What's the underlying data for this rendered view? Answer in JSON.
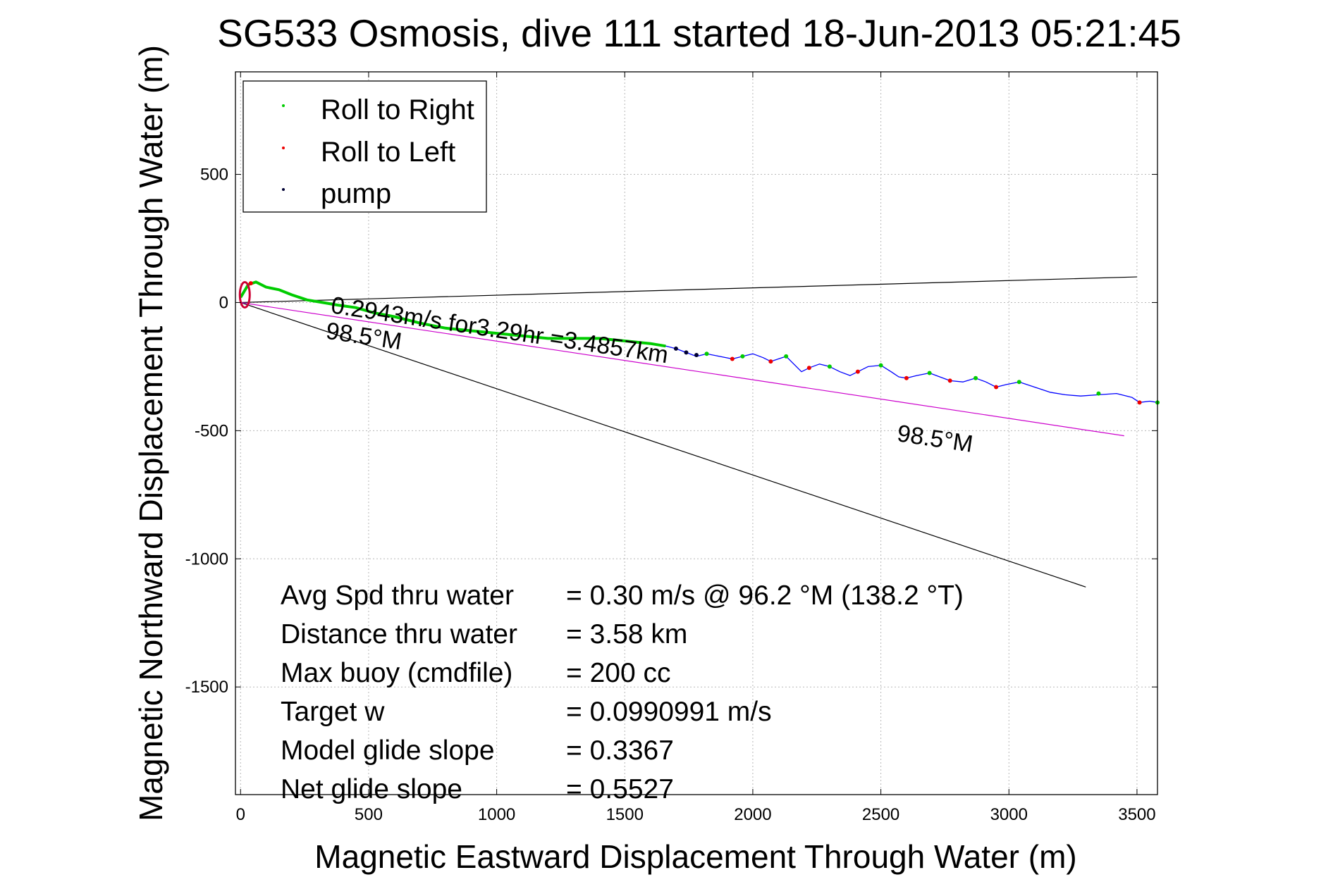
{
  "chart_data": {
    "type": "line",
    "title": "SG533 Osmosis, dive 111 started 18-Jun-2013 05:21:45",
    "xlabel": "Magnetic Eastward Displacement Through Water (m)",
    "ylabel": "Magnetic Northward Displacement Through Water (m)",
    "xlim": [
      -20,
      3580
    ],
    "ylim": [
      -1920,
      900
    ],
    "xticks": [
      0,
      500,
      1000,
      1500,
      2000,
      2500,
      3000,
      3500
    ],
    "yticks": [
      -1500,
      -1000,
      -500,
      0,
      500
    ],
    "grid": true,
    "legend": {
      "placement": "top-left",
      "entries": [
        {
          "label": "Roll to Right",
          "color": "#00cc00"
        },
        {
          "label": "Roll to Left",
          "color": "#ee0000"
        },
        {
          "label": "pump",
          "color": "#000033"
        }
      ]
    },
    "series": [
      {
        "color": "#0000ff",
        "x": [
          0,
          30,
          60,
          100,
          150,
          200,
          260,
          320,
          380,
          450,
          520,
          600,
          700,
          800,
          900,
          1000,
          1100,
          1200,
          1300,
          1400,
          1500,
          1600,
          1660,
          1700,
          1740,
          1780,
          1820,
          1870,
          1920,
          1960,
          2000,
          2040,
          2070,
          2100,
          2130,
          2160,
          2190,
          2220,
          2260,
          2300,
          2340,
          2380,
          2410,
          2450,
          2500,
          2540,
          2570,
          2600,
          2640,
          2690,
          2730,
          2770,
          2820,
          2870,
          2910,
          2950,
          2990,
          3040,
          3100,
          3160,
          3220,
          3280,
          3350,
          3420,
          3480,
          3510,
          3550,
          3580
        ],
        "y": [
          20,
          70,
          80,
          60,
          50,
          30,
          10,
          0,
          -10,
          -20,
          -40,
          -55,
          -80,
          -100,
          -110,
          -120,
          -130,
          -140,
          -140,
          -140,
          -150,
          -160,
          -170,
          -180,
          -195,
          -210,
          -200,
          -210,
          -220,
          -210,
          -200,
          -215,
          -230,
          -220,
          -210,
          -240,
          -270,
          -255,
          -240,
          -250,
          -270,
          -285,
          -270,
          -250,
          -245,
          -270,
          -290,
          -295,
          -285,
          -275,
          -290,
          -305,
          -310,
          -295,
          -310,
          -330,
          -320,
          -310,
          -330,
          -350,
          -360,
          -365,
          -360,
          -355,
          -370,
          -390,
          -385,
          -390
        ]
      },
      {
        "color": "#00cc00",
        "x": [
          0,
          30,
          60,
          100,
          150,
          200,
          260,
          320,
          380,
          450,
          520,
          600,
          700,
          800,
          900,
          1000,
          1100,
          1200,
          1300,
          1400,
          1500,
          1600,
          1660
        ],
        "y": [
          20,
          70,
          80,
          60,
          50,
          30,
          10,
          0,
          -10,
          -20,
          -40,
          -55,
          -80,
          -100,
          -110,
          -120,
          -130,
          -140,
          -140,
          -140,
          -150,
          -160,
          -170
        ]
      }
    ],
    "point_markers": {
      "roll_right": {
        "color": "#00cc00",
        "points": [
          [
            1820,
            -200
          ],
          [
            1960,
            -210
          ],
          [
            2130,
            -210
          ],
          [
            2300,
            -250
          ],
          [
            2500,
            -245
          ],
          [
            2690,
            -275
          ],
          [
            2870,
            -295
          ],
          [
            3040,
            -310
          ],
          [
            3350,
            -355
          ],
          [
            3580,
            -390
          ]
        ]
      },
      "roll_left": {
        "color": "#ee0000",
        "points": [
          [
            40,
            75
          ],
          [
            1920,
            -220
          ],
          [
            2070,
            -230
          ],
          [
            2220,
            -255
          ],
          [
            2410,
            -270
          ],
          [
            2600,
            -295
          ],
          [
            2770,
            -305
          ],
          [
            2950,
            -330
          ],
          [
            3510,
            -390
          ]
        ]
      },
      "pump": {
        "color": "#000033",
        "points": [
          [
            1700,
            -180
          ],
          [
            1740,
            -195
          ],
          [
            1780,
            -205
          ]
        ]
      }
    },
    "reference_lines": [
      {
        "color": "#000000",
        "x": [
          0,
          3500
        ],
        "y": [
          0,
          100
        ]
      },
      {
        "color": "#000000",
        "x": [
          0,
          3300
        ],
        "y": [
          0,
          -1110
        ]
      },
      {
        "color": "#cc00cc",
        "x": [
          0,
          3450
        ],
        "y": [
          0,
          -520
        ]
      }
    ],
    "annotations": [
      {
        "text": "0.2943m/s for3.29hr =3.4857km",
        "x": 350,
        "y": -40,
        "rotate": 8.5
      },
      {
        "text": "98.5°M",
        "x": 330,
        "y": -140,
        "rotate": 8.5
      },
      {
        "text": "98.5°M",
        "x": 2560,
        "y": -540,
        "rotate": 8.5
      }
    ],
    "stats": [
      {
        "label": "Avg Spd thru water",
        "value": "=  0.30 m/s @  96.2 °M (138.2 °T)"
      },
      {
        "label": "Distance thru water",
        "value": "=  3.58 km"
      },
      {
        "label": "Max buoy (cmdfile)",
        "value": "= 200 cc"
      },
      {
        "label": "Target w",
        "value": "= 0.0990991 m/s"
      },
      {
        "label": "Model glide slope",
        "value": "= 0.3367"
      },
      {
        "label": "Net glide slope",
        "value": "= 0.5527"
      }
    ]
  }
}
